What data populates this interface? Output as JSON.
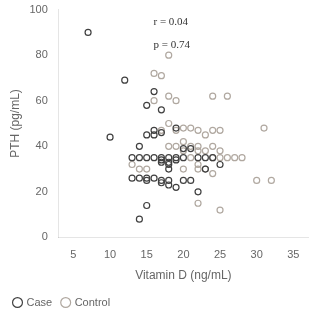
{
  "chart_data": {
    "type": "scatter",
    "xlabel": "Vitamin D (ng/mL)",
    "ylabel": "PTH (pg/mL)",
    "series": [
      {
        "name": "Case",
        "color": "#404040",
        "x": [
          7,
          10,
          12,
          13,
          13,
          14,
          14,
          14,
          14,
          15,
          15,
          15,
          15,
          15,
          15,
          16,
          16,
          16,
          16,
          16,
          17,
          17,
          17,
          17,
          17,
          17,
          17,
          18,
          18,
          18,
          18,
          18,
          18,
          19,
          19,
          19,
          19,
          20,
          20,
          20,
          21,
          21,
          22,
          22,
          23,
          23,
          24,
          25
        ],
        "values": [
          90,
          44,
          69,
          35,
          26,
          40,
          35,
          26,
          8,
          58,
          45,
          35,
          26,
          25,
          14,
          64,
          47,
          45,
          35,
          26,
          56,
          46,
          35,
          34,
          33,
          25,
          24,
          35,
          33,
          32,
          30,
          25,
          23,
          48,
          35,
          34,
          22,
          39,
          35,
          25,
          39,
          25,
          35,
          20,
          35,
          30,
          35,
          32
        ]
      },
      {
        "name": "Control",
        "color": "#b0a8a0",
        "x": [
          13,
          14,
          15,
          16,
          16,
          17,
          17,
          18,
          18,
          18,
          18,
          19,
          19,
          19,
          20,
          20,
          20,
          20,
          21,
          21,
          21,
          22,
          22,
          22,
          22,
          22,
          22,
          23,
          23,
          23,
          24,
          24,
          24,
          24,
          24,
          25,
          25,
          25,
          25,
          26,
          26,
          27,
          28,
          30,
          31,
          32
        ],
        "values": [
          32,
          30,
          30,
          72,
          60,
          71,
          47,
          80,
          62,
          50,
          40,
          60,
          47,
          40,
          48,
          42,
          38,
          30,
          48,
          40,
          35,
          47,
          40,
          38,
          32,
          30,
          15,
          45,
          38,
          30,
          62,
          47,
          40,
          35,
          28,
          47,
          38,
          35,
          12,
          62,
          35,
          35,
          35,
          25,
          48,
          25
        ]
      }
    ],
    "annotations": [
      "r = 0.04",
      "p = 0.74"
    ],
    "xlim": [
      3,
      37
    ],
    "ylim": [
      0,
      100
    ],
    "xticks": [
      5,
      10,
      15,
      20,
      25,
      30,
      35
    ],
    "yticks": [
      0,
      20,
      40,
      60,
      80,
      100
    ],
    "grid": false,
    "legend": "bottom",
    "marker": "circle"
  }
}
